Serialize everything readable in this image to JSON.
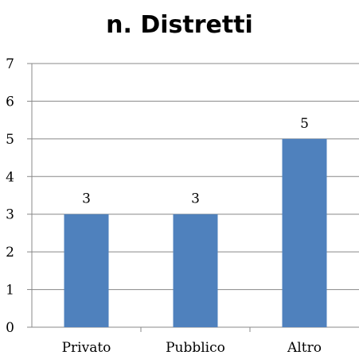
{
  "chart_data": {
    "type": "bar",
    "title": "n. Distretti",
    "categories": [
      "Privato",
      "Pubblico",
      "Altro"
    ],
    "values": [
      3,
      3,
      5
    ],
    "data_labels": [
      "3",
      "3",
      "5"
    ],
    "ylim": [
      0,
      7
    ],
    "yticks": [
      "0",
      "1",
      "2",
      "3",
      "4",
      "5",
      "6",
      "7"
    ],
    "grid": true,
    "legend": "none",
    "bar_color": "#4f81bd",
    "grid_color": "#888888"
  }
}
